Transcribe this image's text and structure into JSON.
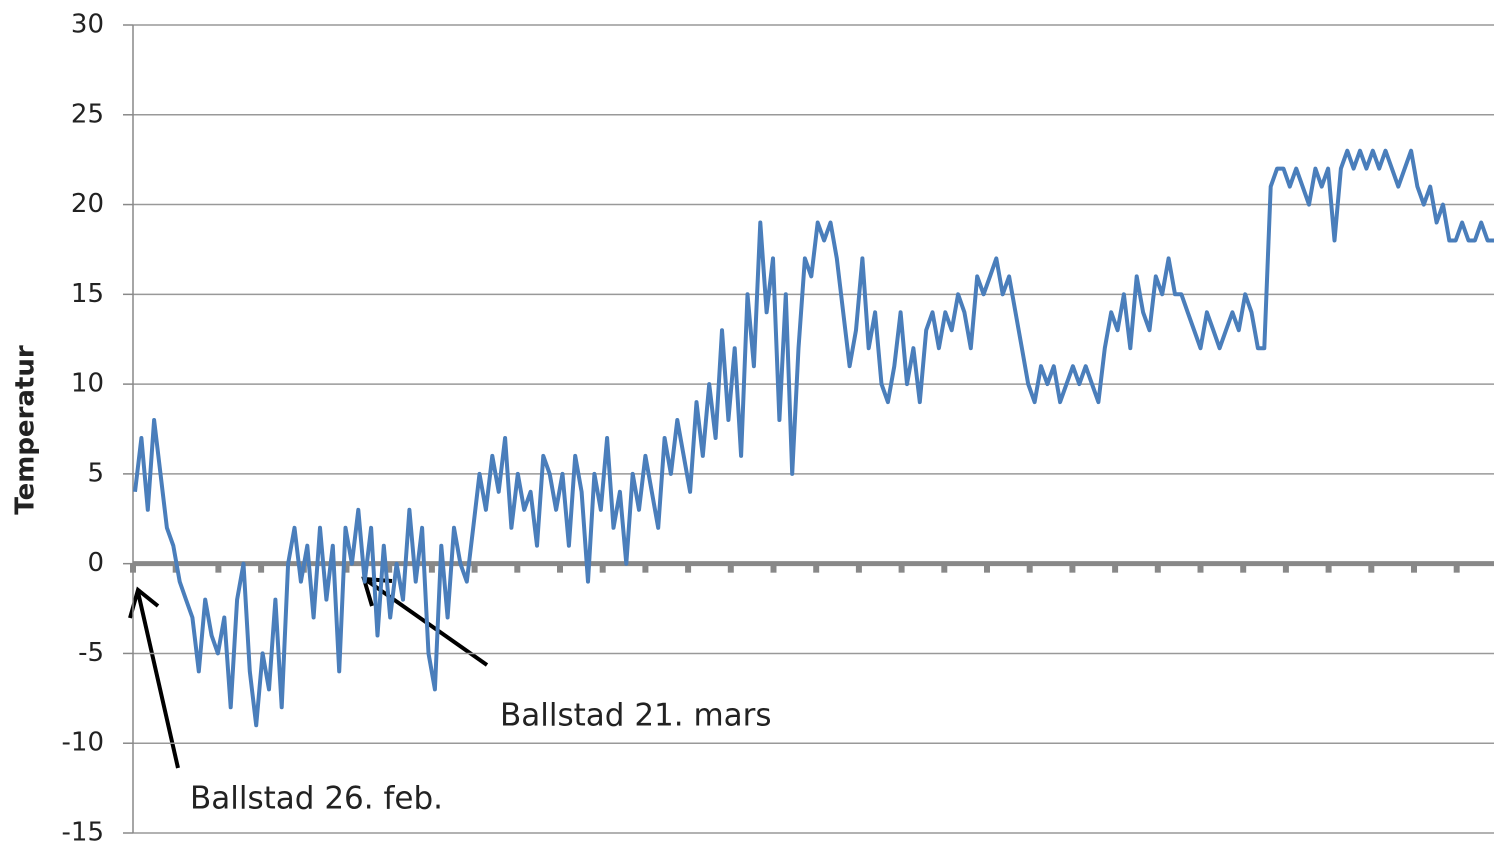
{
  "chart_data": {
    "type": "line",
    "y_label": "Temperatur",
    "annotations": [
      "Ballstad 26. feb.",
      "Ballstad 21. mars"
    ],
    "color": "#4a7ebb",
    "ylim": [
      -15,
      30
    ],
    "yticks": [
      -15,
      -10,
      -5,
      0,
      5,
      10,
      15,
      20,
      25,
      30
    ],
    "grid": true,
    "values": [
      4,
      7,
      3,
      8,
      5,
      2,
      1,
      -1,
      -2,
      -3,
      -6,
      -2,
      -4,
      -5,
      -3,
      -8,
      -2,
      0,
      -6,
      -9,
      -5,
      -7,
      -2,
      -8,
      0,
      2,
      -1,
      1,
      -3,
      2,
      -2,
      1,
      -6,
      2,
      0,
      3,
      -1,
      2,
      -4,
      1,
      -3,
      0,
      -2,
      3,
      -1,
      2,
      -5,
      -7,
      1,
      -3,
      2,
      0,
      -1,
      2,
      5,
      3,
      6,
      4,
      7,
      2,
      5,
      3,
      4,
      1,
      6,
      5,
      3,
      5,
      1,
      6,
      4,
      -1,
      5,
      3,
      7,
      2,
      4,
      0,
      5,
      3,
      6,
      4,
      2,
      7,
      5,
      8,
      6,
      4,
      9,
      6,
      10,
      7,
      13,
      8,
      12,
      6,
      15,
      11,
      19,
      14,
      17,
      8,
      15,
      5,
      12,
      17,
      16,
      19,
      18,
      19,
      17,
      14,
      11,
      13,
      17,
      12,
      14,
      10,
      9,
      11,
      14,
      10,
      12,
      9,
      13,
      14,
      12,
      14,
      13,
      15,
      14,
      12,
      16,
      15,
      16,
      17,
      15,
      16,
      14,
      12,
      10,
      9,
      11,
      10,
      11,
      9,
      10,
      11,
      10,
      11,
      10,
      9,
      12,
      14,
      13,
      15,
      12,
      16,
      14,
      13,
      16,
      15,
      17,
      15,
      15,
      14,
      13,
      12,
      14,
      13,
      12,
      13,
      14,
      13,
      15,
      14,
      12,
      12,
      21,
      22,
      22,
      21,
      22,
      21,
      20,
      22,
      21,
      22,
      18,
      22,
      23,
      22,
      23,
      22,
      23,
      22,
      23,
      22,
      21,
      22,
      23,
      21,
      20,
      21,
      19,
      20,
      18,
      18,
      19,
      18,
      18,
      19,
      18,
      18
    ]
  }
}
